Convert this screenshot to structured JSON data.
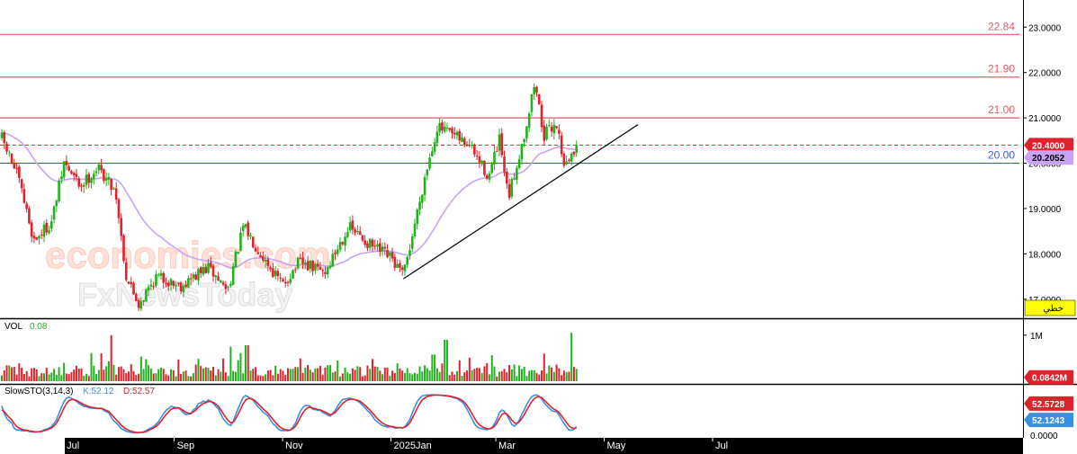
{
  "colors": {
    "up": "#22b11e",
    "down": "#e0222d",
    "ma": "#c9a3f5",
    "resistance": "#e05a67",
    "support": "#3a5bd9",
    "trendline": "#000000",
    "current_price_tag": "#e0222d",
    "ma_tag": "#c9a3f5",
    "stoch_k": "#3b8fe0",
    "stoch_d": "#e0222d",
    "watermark": "#ffd9cf",
    "yellow_tag": "#ffff00",
    "axis_bg": "#000000"
  },
  "chart_data": [
    {
      "type": "candlestick",
      "title": "",
      "ylim": [
        16.6,
        23.6
      ],
      "y_ticks": [
        "23.0000",
        "22.0000",
        "21.0000",
        "20.0000",
        "19.0000",
        "18.0000",
        "17.0000"
      ],
      "x_labels": [
        "Jul",
        "Sep",
        "Nov",
        "2025Jan",
        "Mar",
        "May",
        "Jul"
      ],
      "horizontal_levels": [
        {
          "value": 22.84,
          "label": "22.84",
          "style": "resistance"
        },
        {
          "value": 21.9,
          "label": "21.90",
          "style": "resistance"
        },
        {
          "value": 21.0,
          "label": "21.00",
          "style": "resistance"
        },
        {
          "value": 20.0,
          "label": "20.00",
          "style": "support"
        }
      ],
      "current_price": {
        "value": 20.4,
        "label": "20.4000"
      },
      "moving_average": {
        "value": 20.2052,
        "label": "20.2052"
      },
      "trendline": {
        "from": {
          "date": "2025-01-08",
          "value": 17.45
        },
        "to": {
          "date": "2025-05-20",
          "value": 20.85
        }
      },
      "price_path": [
        [
          "2024-05-27",
          20.55
        ],
        [
          "2024-06-05",
          19.7
        ],
        [
          "2024-06-14",
          18.3
        ],
        [
          "2024-06-24",
          18.7
        ],
        [
          "2024-07-01",
          20.0
        ],
        [
          "2024-07-10",
          19.5
        ],
        [
          "2024-07-20",
          19.9
        ],
        [
          "2024-07-30",
          19.4
        ],
        [
          "2024-08-05",
          17.5
        ],
        [
          "2024-08-12",
          16.9
        ],
        [
          "2024-08-22",
          17.5
        ],
        [
          "2024-09-05",
          17.3
        ],
        [
          "2024-09-20",
          17.7
        ],
        [
          "2024-10-01",
          17.2
        ],
        [
          "2024-10-10",
          18.6
        ],
        [
          "2024-10-20",
          18.0
        ],
        [
          "2024-11-01",
          17.3
        ],
        [
          "2024-11-10",
          17.8
        ],
        [
          "2024-11-25",
          17.6
        ],
        [
          "2024-12-08",
          18.6
        ],
        [
          "2024-12-20",
          18.2
        ],
        [
          "2025-01-01",
          17.9
        ],
        [
          "2025-01-08",
          17.5
        ],
        [
          "2025-01-20",
          19.7
        ],
        [
          "2025-01-27",
          20.8
        ],
        [
          "2025-02-05",
          20.6
        ],
        [
          "2025-02-14",
          20.4
        ],
        [
          "2025-02-25",
          19.7
        ],
        [
          "2025-03-03",
          20.5
        ],
        [
          "2025-03-08",
          19.2
        ],
        [
          "2025-03-18",
          20.8
        ],
        [
          "2025-03-23",
          21.8
        ],
        [
          "2025-03-28",
          20.6
        ],
        [
          "2025-04-04",
          20.9
        ],
        [
          "2025-04-09",
          19.9
        ],
        [
          "2025-04-16",
          20.4
        ]
      ],
      "volume": {
        "label": "VOL",
        "last_value": "0.08",
        "ylim": [
          0,
          1.25
        ],
        "y_ticks": [
          "1M"
        ],
        "current_tag": "0.0842M",
        "spikes": [
          [
            "2024-07-27",
            1.0
          ],
          [
            "2024-10-03",
            0.75
          ],
          [
            "2024-10-12",
            0.78
          ],
          [
            "2025-01-25",
            0.58
          ],
          [
            "2025-02-01",
            0.9
          ],
          [
            "2025-03-28",
            0.6
          ],
          [
            "2025-04-13",
            1.05
          ]
        ]
      },
      "stochastic": {
        "label": "SlowSTO(3,14,3)",
        "k_label": "K:52.12",
        "d_label": "D:52.57",
        "ylim": [
          0,
          100
        ],
        "y_ticks": [
          "0.0000"
        ],
        "k_tag": "52.1243",
        "d_tag": "52.5728"
      }
    }
  ],
  "watermark": {
    "line1": "economies.com",
    "line2": "FxNewsToday"
  },
  "price_axis_note": "خطي"
}
